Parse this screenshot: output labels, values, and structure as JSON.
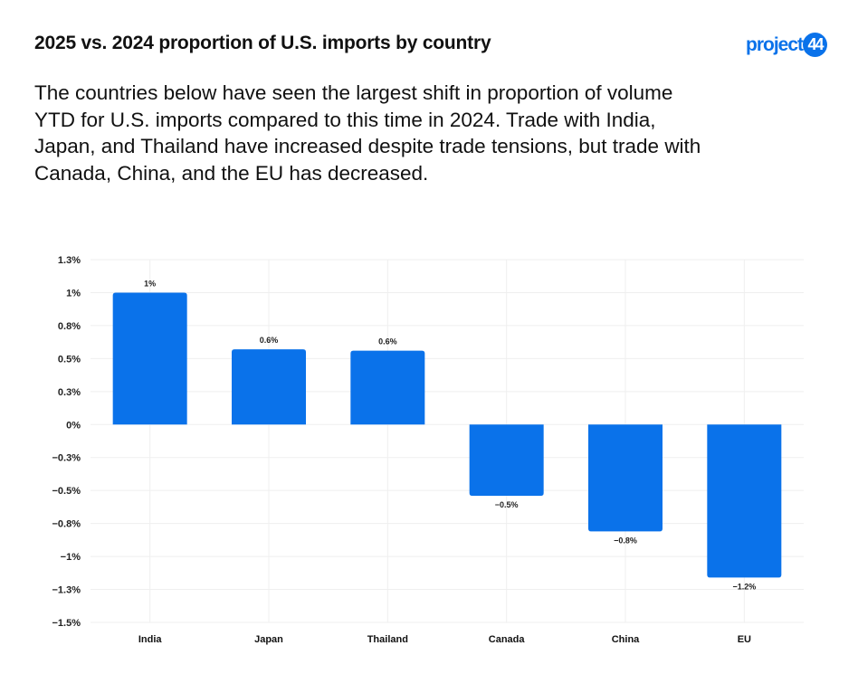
{
  "header": {
    "title": "2025 vs. 2024 proportion of U.S. imports by country",
    "logo_text": "project",
    "logo_badge": "44"
  },
  "description": "The countries below have seen the largest shift in proportion of volume YTD for U.S. imports compared to this time in 2024. Trade with India, Japan, and Thailand have increased despite trade tensions, but trade with Canada, China, and the EU has decreased.",
  "colors": {
    "bar": "#0a72ea",
    "brand": "#0a72ea",
    "grid": "#efefef"
  },
  "chart_data": {
    "type": "bar",
    "title": "2025 vs. 2024 proportion of U.S. imports by country",
    "xlabel": "",
    "ylabel": "",
    "categories": [
      "India",
      "Japan",
      "Thailand",
      "Canada",
      "China",
      "EU"
    ],
    "values": [
      1.0,
      0.57,
      0.56,
      -0.54,
      -0.81,
      -1.16
    ],
    "data_labels": [
      "1%",
      "0.6%",
      "0.6%",
      "−0.5%",
      "−0.8%",
      "−1.2%"
    ],
    "yticks": [
      1.25,
      1.0,
      0.75,
      0.5,
      0.25,
      0,
      -0.25,
      -0.5,
      -0.75,
      -1.0,
      -1.25,
      -1.5
    ],
    "ytick_labels": [
      "1.3%",
      "1%",
      "0.8%",
      "0.5%",
      "0.3%",
      "0%",
      "−0.3%",
      "−0.5%",
      "−0.8%",
      "−1%",
      "−1.3%",
      "−1.5%"
    ],
    "ylim": [
      -1.5,
      1.25
    ],
    "grid": true,
    "legend": "none"
  }
}
